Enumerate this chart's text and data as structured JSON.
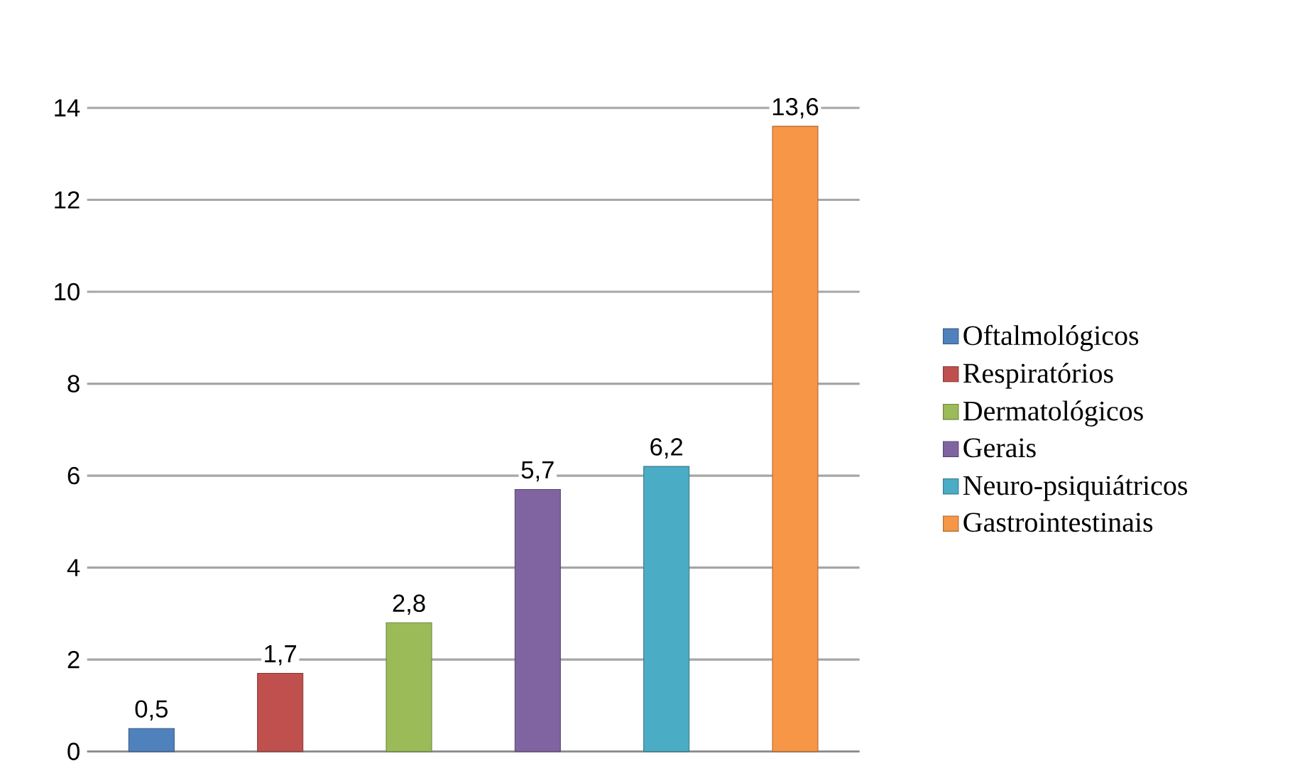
{
  "chart_data": {
    "type": "bar",
    "categories": [
      null,
      null,
      null,
      null,
      null,
      null
    ],
    "series": [
      {
        "name": "Oftalmológicos",
        "color": "#4f81bd",
        "values": [
          0.5,
          null,
          null,
          null,
          null,
          null
        ],
        "value_labels": [
          "0,5",
          null,
          null,
          null,
          null,
          null
        ]
      },
      {
        "name": "Respiratórios",
        "color": "#c0504d",
        "values": [
          null,
          1.7,
          null,
          null,
          null,
          null
        ],
        "value_labels": [
          null,
          "1,7",
          null,
          null,
          null,
          null
        ]
      },
      {
        "name": "Dermatológicos",
        "color": "#9bbb59",
        "values": [
          null,
          null,
          2.8,
          null,
          null,
          null
        ],
        "value_labels": [
          null,
          null,
          "2,8",
          null,
          null,
          null
        ]
      },
      {
        "name": "Gerais",
        "color": "#8064a2",
        "values": [
          null,
          null,
          null,
          5.7,
          null,
          null
        ],
        "value_labels": [
          null,
          null,
          null,
          "5,7",
          null,
          null
        ]
      },
      {
        "name": "Neuro-psiquiátricos",
        "color": "#4bacc6",
        "values": [
          null,
          null,
          null,
          null,
          6.2,
          null
        ],
        "value_labels": [
          null,
          null,
          null,
          null,
          "6,2",
          null
        ]
      },
      {
        "name": "Gastrointestinais",
        "color": "#f79646",
        "values": [
          null,
          null,
          null,
          null,
          null,
          13.6
        ],
        "value_labels": [
          null,
          null,
          null,
          null,
          null,
          "13,6"
        ]
      }
    ],
    "ylim": [
      0,
      14
    ],
    "yticks": [
      0,
      2,
      4,
      6,
      8,
      10,
      12,
      14
    ],
    "grid": "y",
    "legend": "right"
  }
}
